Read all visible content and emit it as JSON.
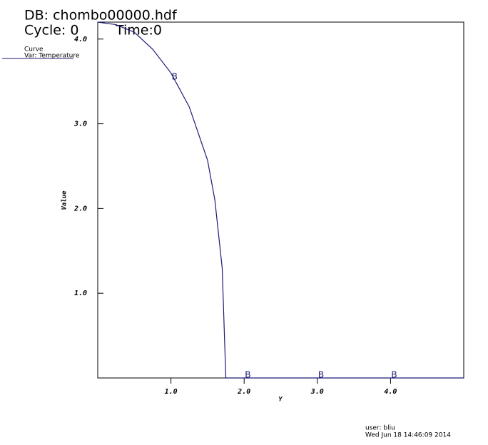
{
  "header": {
    "db": "DB: chombo00000.hdf",
    "cycle": "Cycle: 0",
    "time": "Time:0"
  },
  "legend": {
    "title": "Curve",
    "variable": "Var: Temperature"
  },
  "footer": {
    "user": "user: bliu",
    "date": "Wed Jun 18 14:46:09 2014"
  },
  "chart_data": {
    "type": "line",
    "x_label": "Y",
    "y_label": "Value",
    "xlim": [
      0,
      5
    ],
    "ylim": [
      0,
      4.2
    ],
    "xticks": [
      {
        "value": 1,
        "label": "1.0"
      },
      {
        "value": 2,
        "label": "2.0"
      },
      {
        "value": 3,
        "label": "3.0"
      },
      {
        "value": 4,
        "label": "4.0"
      }
    ],
    "yticks": [
      {
        "value": 1,
        "label": "1.0"
      },
      {
        "value": 2,
        "label": "2.0"
      },
      {
        "value": 3,
        "label": "3.0"
      },
      {
        "value": 4,
        "label": "4.0"
      }
    ],
    "series": [
      {
        "name": "Temperature",
        "color": "#1c1c78",
        "x": [
          0,
          0.25,
          0.5,
          0.75,
          1.0,
          1.25,
          1.5,
          1.6,
          1.7,
          1.75,
          5
        ],
        "values": [
          4.2,
          4.17,
          4.08,
          3.88,
          3.6,
          3.2,
          2.57,
          2.1,
          1.3,
          0,
          0
        ],
        "marker_label": "B",
        "marker_x": [
          1.05,
          2.05,
          3.05,
          4.05
        ]
      }
    ]
  }
}
